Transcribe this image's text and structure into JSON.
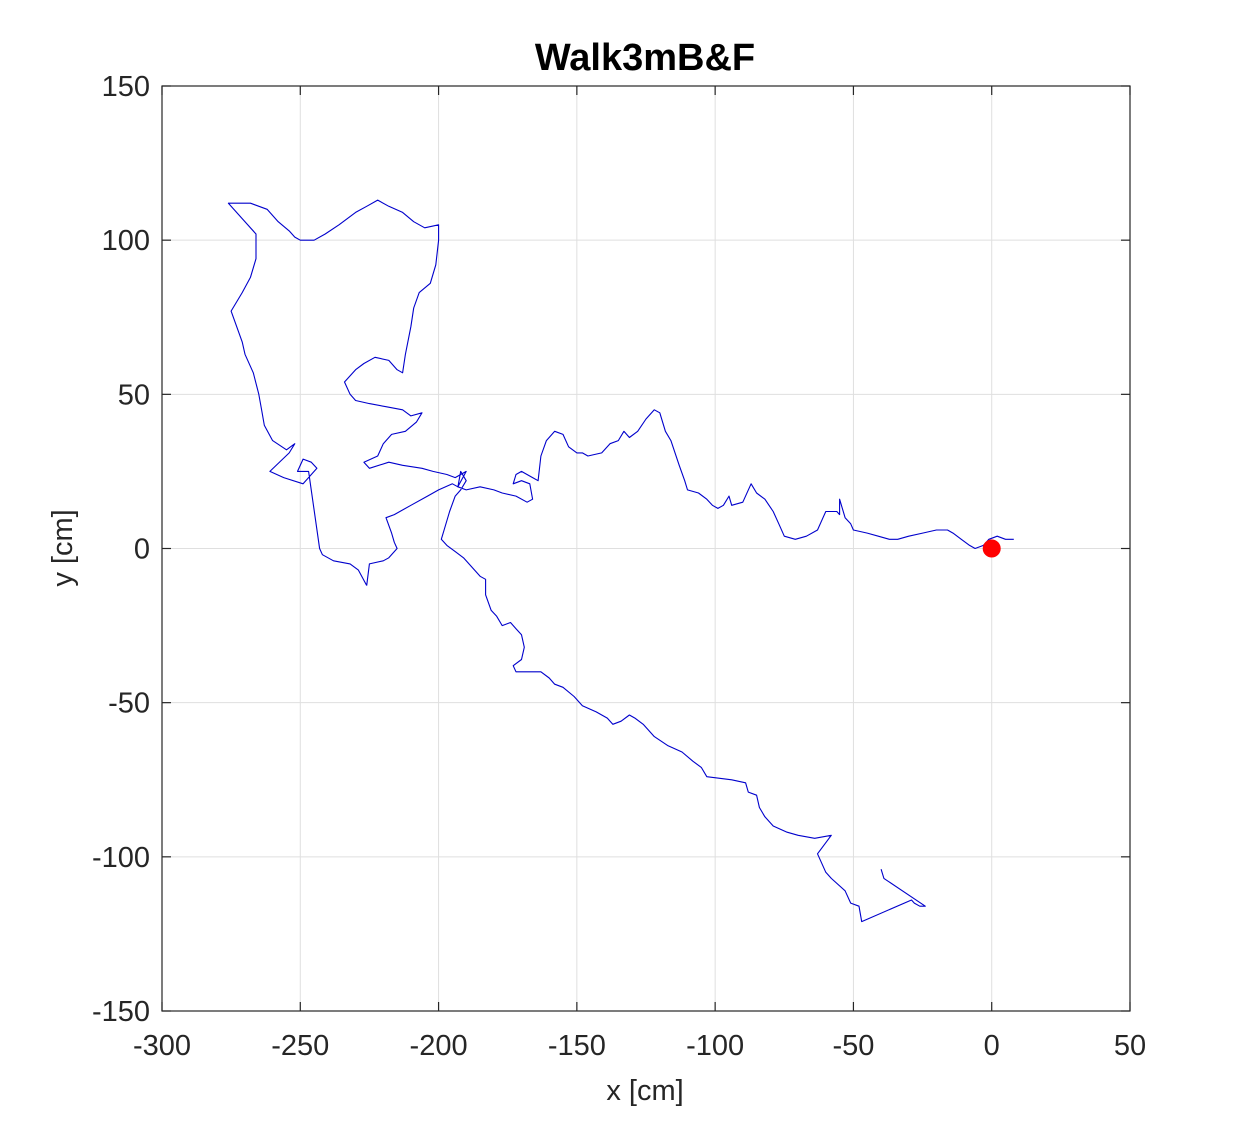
{
  "chart_data": {
    "type": "line",
    "title": "Walk3mB&F",
    "xlabel": "x [cm]",
    "ylabel": "y [cm]",
    "xlim": [
      -300,
      50
    ],
    "ylim": [
      -150,
      150
    ],
    "xticks": [
      -300,
      -250,
      -200,
      -150,
      -100,
      -50,
      0,
      50
    ],
    "yticks": [
      -150,
      -100,
      -50,
      0,
      50,
      100,
      150
    ],
    "xtick_labels": [
      "-300",
      "-250",
      "-200",
      "-150",
      "-100",
      "-50",
      "0",
      "50"
    ],
    "ytick_labels": [
      "-150",
      "-100",
      "-50",
      "0",
      "50",
      "100",
      "150"
    ],
    "grid": true,
    "series": [
      {
        "type": "line",
        "color": "#0000cc",
        "points": [
          [
            -40,
            -104
          ],
          [
            -39,
            -107
          ],
          [
            -24,
            -116
          ],
          [
            -26,
            -116
          ],
          [
            -28,
            -115
          ],
          [
            -29,
            -114
          ],
          [
            -47,
            -121
          ],
          [
            -48,
            -116
          ],
          [
            -51,
            -115
          ],
          [
            -53,
            -111
          ],
          [
            -58,
            -107
          ],
          [
            -60,
            -105
          ],
          [
            -63,
            -99
          ],
          [
            -58,
            -93
          ],
          [
            -64,
            -94
          ],
          [
            -70,
            -93
          ],
          [
            -74,
            -92
          ],
          [
            -79,
            -90
          ],
          [
            -82,
            -87
          ],
          [
            -84,
            -84
          ],
          [
            -85,
            -80
          ],
          [
            -88,
            -79
          ],
          [
            -89,
            -76
          ],
          [
            -94,
            -75
          ],
          [
            -103,
            -74
          ],
          [
            -105,
            -71
          ],
          [
            -108,
            -69
          ],
          [
            -112,
            -66
          ],
          [
            -117,
            -64
          ],
          [
            -122,
            -61
          ],
          [
            -126,
            -57
          ],
          [
            -129,
            -55
          ],
          [
            -131,
            -54
          ],
          [
            -134,
            -56
          ],
          [
            -137,
            -57
          ],
          [
            -139,
            -55
          ],
          [
            -143,
            -53
          ],
          [
            -148,
            -51
          ],
          [
            -151,
            -48
          ],
          [
            -155,
            -45
          ],
          [
            -158,
            -44
          ],
          [
            -160,
            -42
          ],
          [
            -163,
            -40
          ],
          [
            -168,
            -40
          ],
          [
            -172,
            -40
          ],
          [
            -173,
            -38
          ],
          [
            -170,
            -36
          ],
          [
            -169,
            -32
          ],
          [
            -170,
            -28
          ],
          [
            -172,
            -26
          ],
          [
            -174,
            -24
          ],
          [
            -177,
            -25
          ],
          [
            -179,
            -22
          ],
          [
            -181,
            -20
          ],
          [
            -183,
            -15
          ],
          [
            -183,
            -10
          ],
          [
            -185,
            -9
          ],
          [
            -188,
            -6
          ],
          [
            -191,
            -3
          ],
          [
            -194,
            -1
          ],
          [
            -197,
            1
          ],
          [
            -199,
            3
          ],
          [
            -198,
            6
          ],
          [
            -196,
            12
          ],
          [
            -194,
            17
          ],
          [
            -192,
            19
          ],
          [
            -190,
            22
          ],
          [
            -192,
            25
          ],
          [
            -193,
            20
          ],
          [
            -190,
            19
          ],
          [
            -185,
            20
          ],
          [
            -180,
            19
          ],
          [
            -177,
            18
          ],
          [
            -172,
            17
          ],
          [
            -168,
            15
          ],
          [
            -166,
            16
          ],
          [
            -167,
            21
          ],
          [
            -170,
            22
          ],
          [
            -173,
            21
          ],
          [
            -172,
            24
          ],
          [
            -170,
            25
          ],
          [
            -166,
            23
          ],
          [
            -164,
            22
          ],
          [
            -163,
            30
          ],
          [
            -161,
            35
          ],
          [
            -158,
            38
          ],
          [
            -155,
            37
          ],
          [
            -153,
            33
          ],
          [
            -150,
            31
          ],
          [
            -148,
            31
          ],
          [
            -146,
            30
          ],
          [
            -141,
            31
          ],
          [
            -138,
            34
          ],
          [
            -135,
            35
          ],
          [
            -133,
            38
          ],
          [
            -131,
            36
          ],
          [
            -128,
            38
          ],
          [
            -125,
            42
          ],
          [
            -122,
            45
          ],
          [
            -120,
            44
          ],
          [
            -118,
            38
          ],
          [
            -116,
            35
          ],
          [
            -113,
            27
          ],
          [
            -111,
            22
          ],
          [
            -110,
            19
          ],
          [
            -106,
            18
          ],
          [
            -103,
            16
          ],
          [
            -101,
            14
          ],
          [
            -99,
            13
          ],
          [
            -97,
            14
          ],
          [
            -95,
            17
          ],
          [
            -94,
            14
          ],
          [
            -90,
            15
          ],
          [
            -87,
            21
          ],
          [
            -85,
            18
          ],
          [
            -82,
            16
          ],
          [
            -79,
            12
          ],
          [
            -77,
            8
          ],
          [
            -75,
            4
          ],
          [
            -71,
            3
          ],
          [
            -67,
            4
          ],
          [
            -63,
            6
          ],
          [
            -61,
            10
          ],
          [
            -60,
            12
          ],
          [
            -56,
            12
          ],
          [
            -55,
            11
          ],
          [
            -55,
            16
          ],
          [
            -53,
            10
          ],
          [
            -51,
            8
          ],
          [
            -50,
            6
          ],
          [
            -45,
            5
          ],
          [
            -41,
            4
          ],
          [
            -37,
            3
          ],
          [
            -34,
            3
          ],
          [
            -30,
            4
          ],
          [
            -25,
            5
          ],
          [
            -20,
            6
          ],
          [
            -16,
            6
          ],
          [
            -14,
            5
          ],
          [
            -11,
            3
          ],
          [
            -8,
            1
          ],
          [
            -6,
            0
          ],
          [
            -3,
            1
          ],
          [
            -1,
            3
          ],
          [
            2,
            4
          ],
          [
            5,
            3
          ],
          [
            8,
            3
          ]
        ],
        "lines": [
          [
            -226,
            -12
          ],
          [
            -229,
            -7
          ],
          [
            -232,
            -5
          ],
          [
            -238,
            -4
          ],
          [
            -242,
            -2
          ],
          [
            -243,
            0
          ],
          [
            -247,
            25
          ],
          [
            -251,
            25
          ],
          [
            -249,
            29
          ],
          [
            -246,
            28
          ],
          [
            -244,
            26
          ],
          [
            -249,
            21
          ],
          [
            -256,
            23
          ],
          [
            -261,
            25
          ],
          [
            -254,
            31
          ],
          [
            -252,
            34
          ],
          [
            -255,
            32
          ],
          [
            -260,
            35
          ],
          [
            -263,
            40
          ],
          [
            -264,
            45
          ],
          [
            -265,
            50
          ],
          [
            -267,
            57
          ],
          [
            -270,
            63
          ],
          [
            -271,
            67
          ],
          [
            -275,
            77
          ],
          [
            -271,
            83
          ],
          [
            -268,
            88
          ],
          [
            -266,
            94
          ],
          [
            -266,
            102
          ],
          [
            -270,
            106
          ],
          [
            -276,
            112
          ],
          [
            -268,
            112
          ],
          [
            -262,
            110
          ],
          [
            -258,
            106
          ],
          [
            -254,
            103
          ],
          [
            -252,
            101
          ],
          [
            -250,
            100
          ],
          [
            -245,
            100
          ],
          [
            -241,
            102
          ],
          [
            -236,
            105
          ],
          [
            -230,
            109
          ],
          [
            -226,
            111
          ],
          [
            -222,
            113
          ],
          [
            -218,
            111
          ],
          [
            -213,
            109
          ],
          [
            -209,
            106
          ],
          [
            -205,
            104
          ],
          [
            -200,
            105
          ],
          [
            -200,
            100
          ],
          [
            -201,
            92
          ],
          [
            -203,
            86
          ],
          [
            -207,
            83
          ],
          [
            -209,
            78
          ],
          [
            -210,
            72
          ],
          [
            -212,
            63
          ],
          [
            -213,
            57
          ],
          [
            -215,
            58
          ],
          [
            -218,
            61
          ],
          [
            -223,
            62
          ],
          [
            -227,
            60
          ],
          [
            -230,
            58
          ],
          [
            -234,
            54
          ],
          [
            -232,
            50
          ],
          [
            -230,
            48
          ],
          [
            -225,
            47
          ],
          [
            -219,
            46
          ],
          [
            -213,
            45
          ],
          [
            -210,
            43
          ],
          [
            -206,
            44
          ],
          [
            -208,
            41
          ],
          [
            -212,
            38
          ],
          [
            -217,
            37
          ],
          [
            -220,
            34
          ],
          [
            -222,
            30
          ],
          [
            -227,
            28
          ],
          [
            -225,
            26
          ],
          [
            -218,
            28
          ],
          [
            -213,
            27
          ],
          [
            -206,
            26
          ],
          [
            -202,
            25
          ],
          [
            -197,
            24
          ],
          [
            -194,
            23
          ],
          [
            -190,
            25
          ],
          [
            -193,
            20
          ],
          [
            -195,
            21
          ],
          [
            -200,
            19
          ],
          [
            -204,
            17
          ],
          [
            -210,
            14
          ],
          [
            -216,
            11
          ],
          [
            -219,
            10
          ],
          [
            -217,
            5
          ],
          [
            -216,
            2
          ],
          [
            -215,
            0
          ],
          [
            -218,
            -3
          ],
          [
            -220,
            -4
          ],
          [
            -225,
            -5
          ],
          [
            -226,
            -12
          ]
        ]
      }
    ],
    "markers": [
      {
        "x": 0,
        "y": 0,
        "color": "#ff0000",
        "shape": "filled-circle"
      }
    ]
  }
}
